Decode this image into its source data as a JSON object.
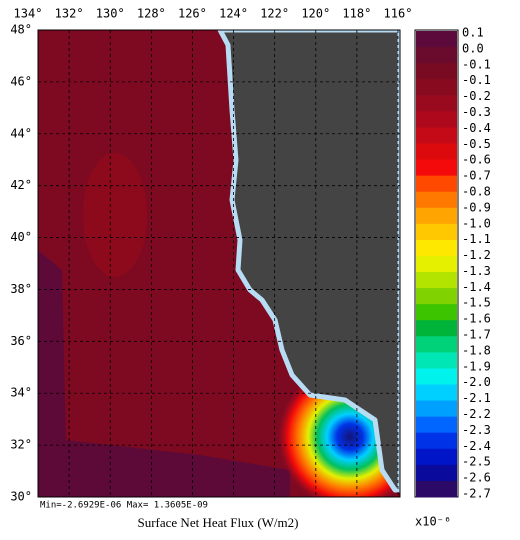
{
  "chart_data": {
    "type": "contour_map",
    "title": "Surface Net Heat Flux (W/m2)",
    "annotation": "Min=-2.6929E-06   Max= 1.3605E-09",
    "xlim": [
      134,
      116
    ],
    "xticks": [
      {
        "value": 134,
        "label": "134°"
      },
      {
        "value": 132,
        "label": "132°"
      },
      {
        "value": 130,
        "label": "130°"
      },
      {
        "value": 128,
        "label": "128°"
      },
      {
        "value": 126,
        "label": "126°"
      },
      {
        "value": 124,
        "label": "124°"
      },
      {
        "value": 122,
        "label": "122°"
      },
      {
        "value": 120,
        "label": "120°"
      },
      {
        "value": 118,
        "label": "118°"
      },
      {
        "value": 116,
        "label": "116°"
      }
    ],
    "ylim": [
      30,
      48
    ],
    "yticks": [
      {
        "value": 48,
        "label": "48°"
      },
      {
        "value": 46,
        "label": "46°"
      },
      {
        "value": 44,
        "label": "44°"
      },
      {
        "value": 42,
        "label": "42°"
      },
      {
        "value": 40,
        "label": "40°"
      },
      {
        "value": 38,
        "label": "38°"
      },
      {
        "value": 36,
        "label": "36°"
      },
      {
        "value": 34,
        "label": "34°"
      },
      {
        "value": 32,
        "label": "32°"
      },
      {
        "value": 30,
        "label": "30°"
      }
    ],
    "grid": true,
    "colorbar": {
      "unit_label": "x10⁻⁶",
      "ticks": [
        0.1,
        {
          "value": 0,
          "label": "0.0"
        },
        -0.1,
        -0.1,
        -0.2,
        -0.3,
        -0.4,
        -0.5,
        -0.6,
        -0.7,
        -0.8,
        -0.9,
        {
          "value": -1,
          "label": "-1.0"
        },
        -1.1,
        -1.2,
        -1.3,
        -1.4,
        -1.5,
        -1.6,
        -1.7,
        -1.8,
        -1.9,
        {
          "value": -2,
          "label": "-2.0"
        },
        -2.1,
        -2.2,
        -2.3,
        -2.4,
        -2.5,
        -2.6,
        -2.7
      ],
      "colors": [
        "#5c0a3c",
        "#6a0a2c",
        "#780a22",
        "#880a1e",
        "#9a0a1e",
        "#ae081c",
        "#c40a16",
        "#dc0a0c",
        "#f40a0a",
        "#ff4800",
        "#ff7800",
        "#ffa400",
        "#ffc800",
        "#ffe800",
        "#e4f000",
        "#b2e400",
        "#80d200",
        "#3cc400",
        "#00b43a",
        "#00d27a",
        "#00e6b4",
        "#00f2ec",
        "#00d0ff",
        "#00a0ff",
        "#0066ff",
        "#0032e8",
        "#0014c8",
        "#0a0a9c",
        "#2a0a66"
      ]
    }
  }
}
